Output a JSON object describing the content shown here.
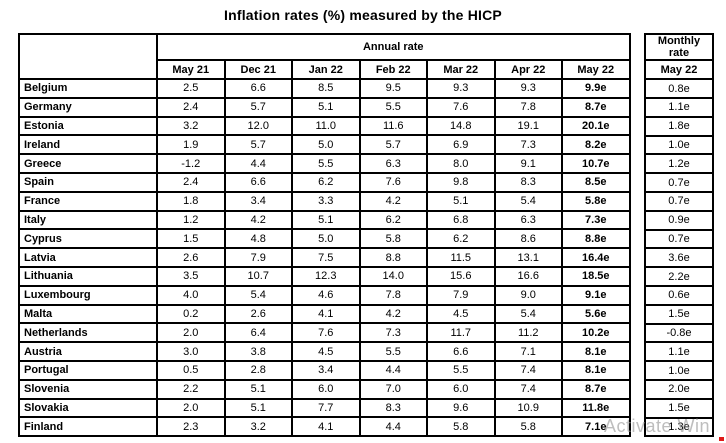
{
  "title": "Inflation rates (%) measured by the HICP",
  "table": {
    "annual_header": "Annual rate",
    "corner_label": "",
    "months": [
      "May 21",
      "Dec 21",
      "Jan 22",
      "Feb 22",
      "Mar 22",
      "Apr 22",
      "May 22"
    ],
    "rows": [
      {
        "country": "Belgium",
        "values": [
          "2.5",
          "6.6",
          "8.5",
          "9.5",
          "9.3",
          "9.3",
          "9.9e"
        ],
        "monthly": "0.8e"
      },
      {
        "country": "Germany",
        "values": [
          "2.4",
          "5.7",
          "5.1",
          "5.5",
          "7.6",
          "7.8",
          "8.7e"
        ],
        "monthly": "1.1e"
      },
      {
        "country": "Estonia",
        "values": [
          "3.2",
          "12.0",
          "11.0",
          "11.6",
          "14.8",
          "19.1",
          "20.1e"
        ],
        "monthly": "1.8e"
      },
      {
        "country": "Ireland",
        "values": [
          "1.9",
          "5.7",
          "5.0",
          "5.7",
          "6.9",
          "7.3",
          "8.2e"
        ],
        "monthly": "1.0e"
      },
      {
        "country": "Greece",
        "values": [
          "-1.2",
          "4.4",
          "5.5",
          "6.3",
          "8.0",
          "9.1",
          "10.7e"
        ],
        "monthly": "1.2e"
      },
      {
        "country": "Spain",
        "values": [
          "2.4",
          "6.6",
          "6.2",
          "7.6",
          "9.8",
          "8.3",
          "8.5e"
        ],
        "monthly": "0.7e"
      },
      {
        "country": "France",
        "values": [
          "1.8",
          "3.4",
          "3.3",
          "4.2",
          "5.1",
          "5.4",
          "5.8e"
        ],
        "monthly": "0.7e"
      },
      {
        "country": "Italy",
        "values": [
          "1.2",
          "4.2",
          "5.1",
          "6.2",
          "6.8",
          "6.3",
          "7.3e"
        ],
        "monthly": "0.9e"
      },
      {
        "country": "Cyprus",
        "values": [
          "1.5",
          "4.8",
          "5.0",
          "5.8",
          "6.2",
          "8.6",
          "8.8e"
        ],
        "monthly": "0.7e"
      },
      {
        "country": "Latvia",
        "values": [
          "2.6",
          "7.9",
          "7.5",
          "8.8",
          "11.5",
          "13.1",
          "16.4e"
        ],
        "monthly": "3.6e"
      },
      {
        "country": "Lithuania",
        "values": [
          "3.5",
          "10.7",
          "12.3",
          "14.0",
          "15.6",
          "16.6",
          "18.5e"
        ],
        "monthly": "2.2e"
      },
      {
        "country": "Luxembourg",
        "values": [
          "4.0",
          "5.4",
          "4.6",
          "7.8",
          "7.9",
          "9.0",
          "9.1e"
        ],
        "monthly": "0.6e"
      },
      {
        "country": "Malta",
        "values": [
          "0.2",
          "2.6",
          "4.1",
          "4.2",
          "4.5",
          "5.4",
          "5.6e"
        ],
        "monthly": "1.5e"
      },
      {
        "country": "Netherlands",
        "values": [
          "2.0",
          "6.4",
          "7.6",
          "7.3",
          "11.7",
          "11.2",
          "10.2e"
        ],
        "monthly": "-0.8e"
      },
      {
        "country": "Austria",
        "values": [
          "3.0",
          "3.8",
          "4.5",
          "5.5",
          "6.6",
          "7.1",
          "8.1e"
        ],
        "monthly": "1.1e"
      },
      {
        "country": "Portugal",
        "values": [
          "0.5",
          "2.8",
          "3.4",
          "4.4",
          "5.5",
          "7.4",
          "8.1e"
        ],
        "monthly": "1.0e"
      },
      {
        "country": "Slovenia",
        "values": [
          "2.2",
          "5.1",
          "6.0",
          "7.0",
          "6.0",
          "7.4",
          "8.7e"
        ],
        "monthly": "2.0e"
      },
      {
        "country": "Slovakia",
        "values": [
          "2.0",
          "5.1",
          "7.7",
          "8.3",
          "9.6",
          "10.9",
          "11.8e"
        ],
        "monthly": "1.5e"
      },
      {
        "country": "Finland",
        "values": [
          "2.3",
          "3.2",
          "4.1",
          "4.4",
          "5.8",
          "5.8",
          "7.1e"
        ],
        "monthly": "1.3e"
      }
    ]
  },
  "monthly_panel": {
    "header": "Monthly\nrate",
    "month": "May 22"
  },
  "watermark": {
    "text": "Activate Win"
  },
  "colors": {
    "border": "#000000",
    "text": "#000000",
    "background": "#ffffff",
    "watermark_gray": "#969696",
    "corner_mark_red": "#e01818"
  }
}
